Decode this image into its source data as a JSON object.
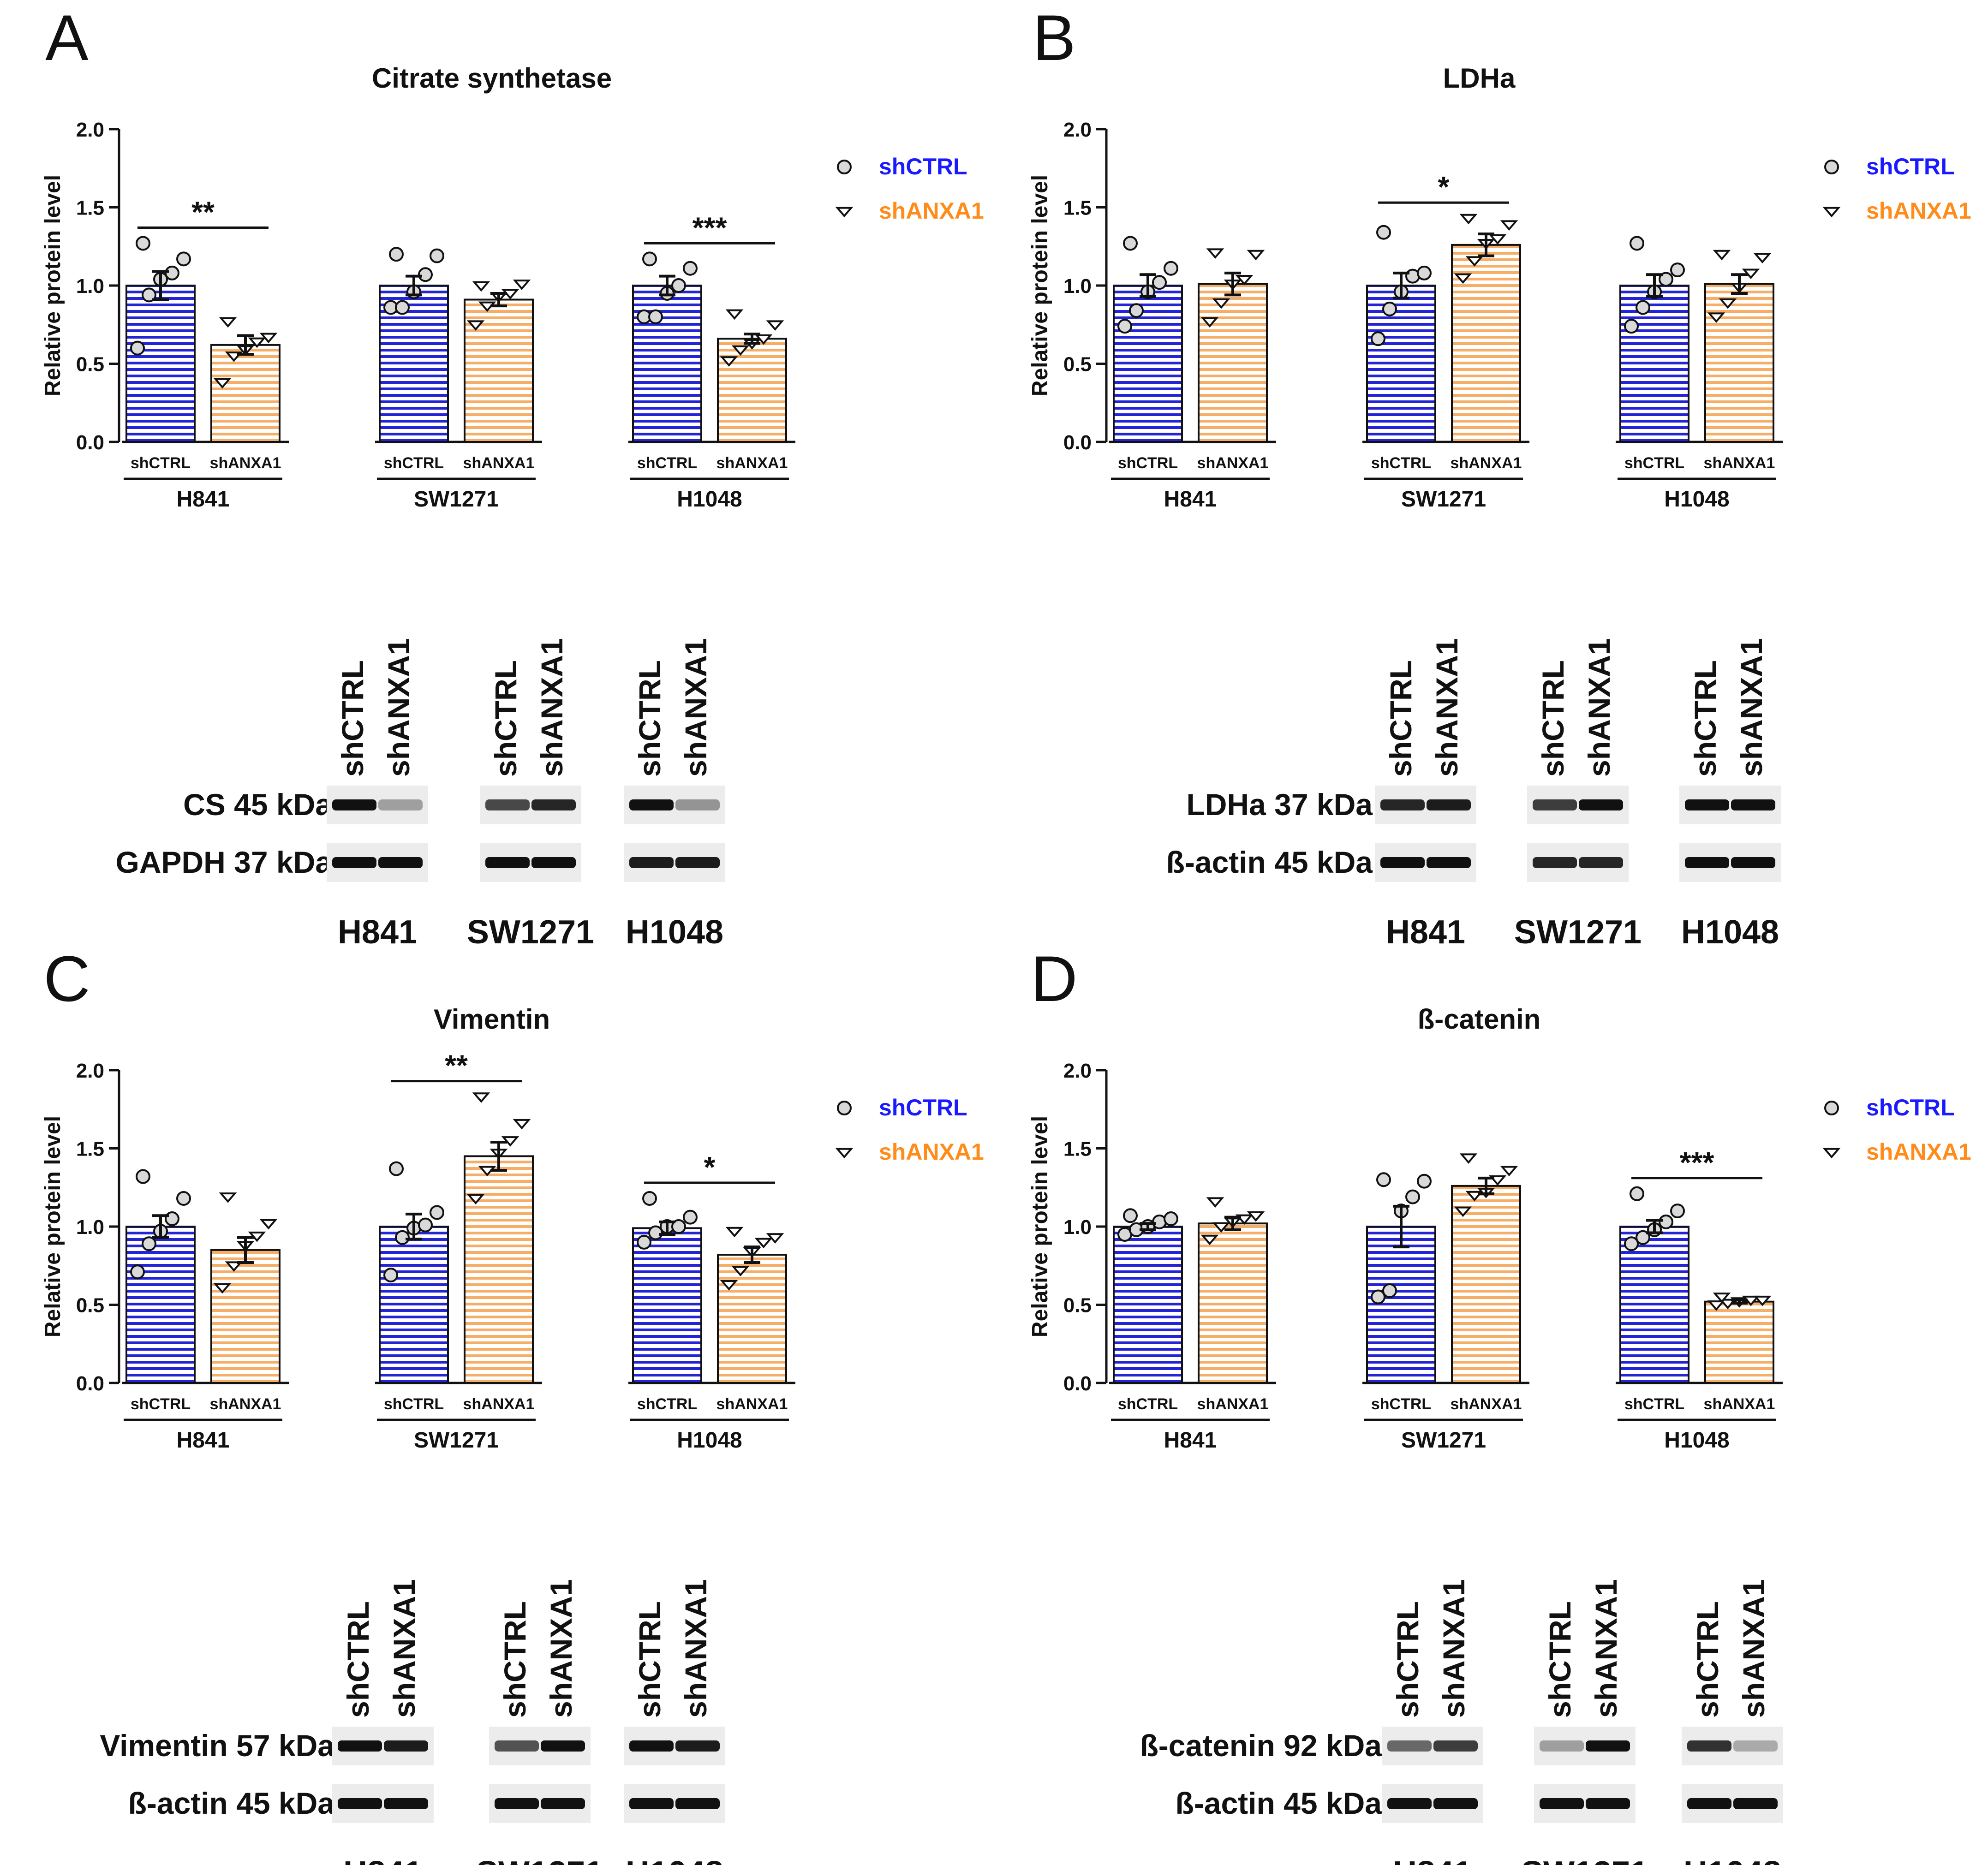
{
  "colors": {
    "ctrl": "#2b2bd6",
    "anxa": "#f5a54a",
    "ctrl_fill": "#2323d8",
    "anxa_fill": "#f6ae66",
    "legend_ctrl": "#1a1aff",
    "legend_anxa": "#ff8c1a"
  },
  "legend": {
    "ctrl": "shCTRL",
    "anxa": "shANXA1"
  },
  "conditions": [
    "shCTRL",
    "shANXA1"
  ],
  "cell_lines": [
    "H841",
    "SW1271",
    "H1048"
  ],
  "y_axis": {
    "label": "Relative protein level",
    "ticks": [
      "0.0",
      "0.5",
      "1.0",
      "1.5",
      "2.0"
    ]
  },
  "chart_data": [
    {
      "panel": "A",
      "type": "bar",
      "title": "Citrate synthetase",
      "ylabel": "Relative protein level",
      "ylim": [
        0,
        2
      ],
      "categories": [
        "H841",
        "SW1271",
        "H1048"
      ],
      "series": [
        {
          "name": "shCTRL",
          "values": [
            1.0,
            1.0,
            1.0
          ],
          "sem": [
            0.09,
            0.06,
            0.06
          ],
          "points": [
            [
              0.6,
              0.94,
              1.04,
              1.08,
              1.17,
              1.27
            ],
            [
              0.86,
              0.86,
              0.96,
              1.07,
              1.19,
              1.2
            ],
            [
              0.8,
              0.8,
              0.95,
              1.0,
              1.11,
              1.17
            ]
          ]
        },
        {
          "name": "shANXA1",
          "values": [
            0.62,
            0.91,
            0.66
          ],
          "sem": [
            0.06,
            0.04,
            0.03
          ],
          "points": [
            [
              0.38,
              0.55,
              0.59,
              0.64,
              0.67,
              0.77
            ],
            [
              0.75,
              0.87,
              0.93,
              0.95,
              1.01,
              1.0
            ],
            [
              0.52,
              0.59,
              0.63,
              0.66,
              0.75,
              0.82
            ]
          ]
        }
      ],
      "significance": [
        "**",
        "",
        "***"
      ]
    },
    {
      "panel": "B",
      "type": "bar",
      "title": "LDHa",
      "ylabel": "Relative protein level",
      "ylim": [
        0,
        2
      ],
      "categories": [
        "H841",
        "SW1271",
        "H1048"
      ],
      "series": [
        {
          "name": "shCTRL",
          "values": [
            1.0,
            1.0,
            1.0
          ],
          "sem": [
            0.07,
            0.08,
            0.07
          ],
          "points": [
            [
              0.74,
              0.84,
              0.96,
              1.02,
              1.11,
              1.27
            ],
            [
              0.66,
              0.85,
              0.96,
              1.06,
              1.08,
              1.34
            ],
            [
              0.74,
              0.86,
              0.96,
              1.04,
              1.1,
              1.27
            ]
          ]
        },
        {
          "name": "shANXA1",
          "values": [
            1.01,
            1.26,
            1.01
          ],
          "sem": [
            0.07,
            0.07,
            0.06
          ],
          "points": [
            [
              0.77,
              0.89,
              1.01,
              1.04,
              1.2,
              1.21
            ],
            [
              1.05,
              1.16,
              1.27,
              1.3,
              1.39,
              1.43
            ],
            [
              0.8,
              0.89,
              0.99,
              1.08,
              1.18,
              1.2
            ]
          ]
        }
      ],
      "significance": [
        "",
        "*",
        ""
      ]
    },
    {
      "panel": "C",
      "type": "bar",
      "title": "Vimentin",
      "ylabel": "Relative protein level",
      "ylim": [
        0,
        2
      ],
      "categories": [
        "H841",
        "SW1271",
        "H1048"
      ],
      "series": [
        {
          "name": "shCTRL",
          "values": [
            1.0,
            1.0,
            0.99
          ],
          "sem": [
            0.07,
            0.08,
            0.04
          ],
          "points": [
            [
              0.71,
              0.89,
              0.97,
              1.05,
              1.18,
              1.32
            ],
            [
              0.69,
              0.93,
              0.99,
              1.01,
              1.09,
              1.37
            ],
            [
              0.9,
              0.96,
              1.0,
              1.0,
              1.06,
              1.18
            ]
          ]
        },
        {
          "name": "shANXA1",
          "values": [
            0.85,
            1.45,
            0.82
          ],
          "sem": [
            0.08,
            0.09,
            0.05
          ],
          "points": [
            [
              0.61,
              0.75,
              0.88,
              0.94,
              1.02,
              1.19
            ],
            [
              1.18,
              1.36,
              1.47,
              1.55,
              1.66,
              1.83
            ],
            [
              0.63,
              0.72,
              0.84,
              0.9,
              0.93,
              0.97
            ]
          ]
        }
      ],
      "significance": [
        "",
        "**",
        "*"
      ]
    },
    {
      "panel": "D",
      "type": "bar",
      "title": "ß-catenin",
      "ylabel": "Relative protein level",
      "ylim": [
        0,
        2
      ],
      "categories": [
        "H841",
        "SW1271",
        "H1048"
      ],
      "series": [
        {
          "name": "shCTRL",
          "values": [
            1.0,
            1.0,
            1.0
          ],
          "sem": [
            0.02,
            0.13,
            0.04
          ],
          "points": [
            [
              0.95,
              0.98,
              1.0,
              1.03,
              1.05,
              1.07
            ],
            [
              0.55,
              0.59,
              1.1,
              1.19,
              1.29,
              1.3
            ],
            [
              0.89,
              0.93,
              0.98,
              1.03,
              1.1,
              1.21
            ]
          ]
        },
        {
          "name": "shANXA1",
          "values": [
            1.02,
            1.26,
            0.52
          ],
          "sem": [
            0.04,
            0.05,
            0.01
          ],
          "points": [
            [
              0.92,
              1.0,
              1.03,
              1.05,
              1.07,
              1.16
            ],
            [
              1.1,
              1.2,
              1.22,
              1.3,
              1.36,
              1.44
            ],
            [
              0.5,
              0.51,
              0.52,
              0.53,
              0.53,
              0.55
            ]
          ]
        }
      ],
      "significance": [
        "",
        "",
        "***"
      ]
    }
  ],
  "blots": [
    {
      "panel": "A",
      "rows": [
        {
          "label": "CS 45 kDa",
          "intensity": [
            1.0,
            0.35,
            0.75,
            0.9,
            1.0,
            0.4
          ]
        },
        {
          "label": "GAPDH 37 kDa",
          "intensity": [
            1.0,
            1.0,
            1.0,
            1.0,
            0.95,
            0.95
          ]
        }
      ]
    },
    {
      "panel": "B",
      "rows": [
        {
          "label": "LDHa 37 kDa",
          "intensity": [
            0.9,
            0.95,
            0.8,
            1.0,
            1.0,
            1.0
          ]
        },
        {
          "label": "ß-actin 45 kDa",
          "intensity": [
            1.0,
            1.0,
            0.9,
            0.9,
            1.0,
            1.0
          ]
        }
      ]
    },
    {
      "panel": "C",
      "rows": [
        {
          "label": "Vimentin 57 kDa",
          "intensity": [
            1.0,
            0.95,
            0.7,
            1.0,
            1.0,
            0.95
          ]
        },
        {
          "label": "ß-actin 45 kDa",
          "intensity": [
            1.0,
            1.0,
            1.0,
            1.0,
            1.0,
            1.0
          ]
        }
      ]
    },
    {
      "panel": "D",
      "rows": [
        {
          "label": "ß-catenin 92 kDa",
          "intensity": [
            0.6,
            0.8,
            0.35,
            1.0,
            0.85,
            0.3
          ]
        },
        {
          "label": "ß-actin 45 kDa",
          "intensity": [
            1.0,
            1.0,
            1.0,
            1.0,
            1.0,
            1.0
          ]
        }
      ]
    }
  ]
}
